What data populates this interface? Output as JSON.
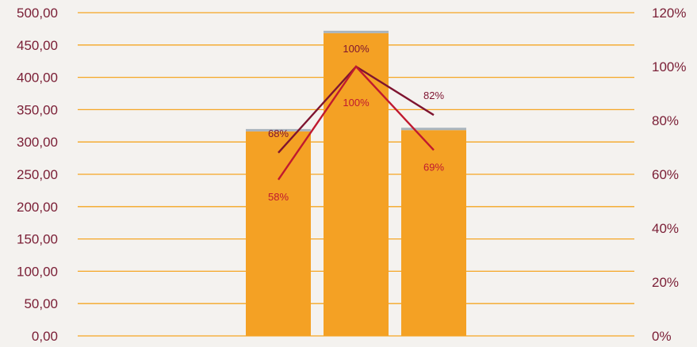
{
  "colors": {
    "background": "#f4f2ef",
    "gridline": "#f5a623",
    "bar": "#f4a124",
    "bar_cap": "#a9b4bd",
    "axis_text": "#7a1e35",
    "series_a": "#c0192f",
    "series_b": "#7e1430"
  },
  "chart_data": {
    "type": "bar",
    "categories": [
      "",
      "",
      ""
    ],
    "series": [
      {
        "type": "bar",
        "axis": "left",
        "values": [
          320,
          472,
          322
        ]
      },
      {
        "type": "line",
        "axis": "right",
        "values": [
          68,
          100,
          82
        ],
        "labels": [
          "68%",
          "100%",
          "82%"
        ]
      },
      {
        "type": "line",
        "axis": "right",
        "values": [
          58,
          100,
          69
        ],
        "labels": [
          "58%",
          "100%",
          "69%"
        ]
      }
    ],
    "y_left": {
      "ylim": [
        0,
        500
      ],
      "ticks": [
        0,
        50,
        100,
        150,
        200,
        250,
        300,
        350,
        400,
        450,
        500
      ],
      "tick_labels": [
        "0,00",
        "50,00",
        "100,00",
        "150,00",
        "200,00",
        "250,00",
        "300,00",
        "350,00",
        "400,00",
        "450,00",
        "500,00"
      ]
    },
    "y_right": {
      "ylim": [
        0,
        120
      ],
      "ticks": [
        0,
        20,
        40,
        60,
        80,
        100,
        120
      ],
      "tick_labels": [
        "0%",
        "20%",
        "40%",
        "60%",
        "80%",
        "100%",
        "120%"
      ]
    },
    "grid": true
  }
}
